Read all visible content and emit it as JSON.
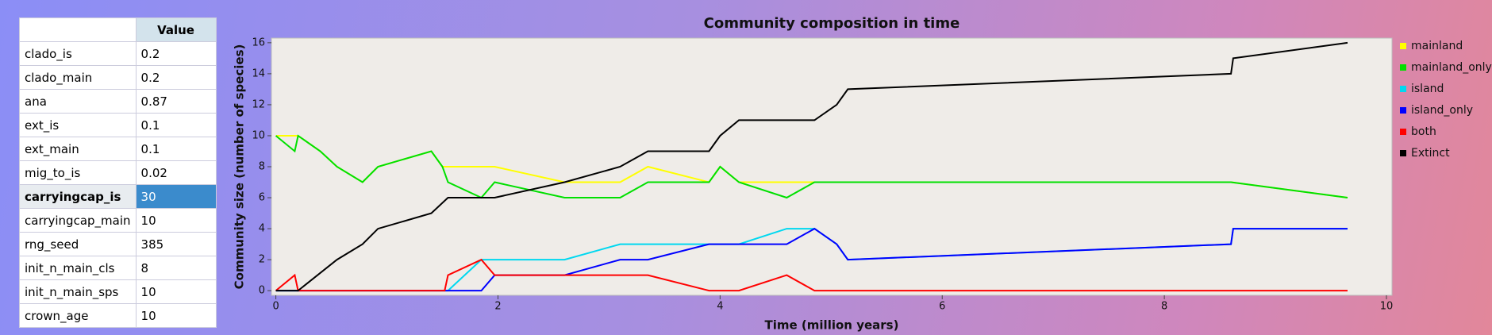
{
  "table": {
    "header": "Value",
    "rows": [
      [
        "clado_is",
        "0.2"
      ],
      [
        "clado_main",
        "0.2"
      ],
      [
        "ana",
        "0.87"
      ],
      [
        "ext_is",
        "0.1"
      ],
      [
        "ext_main",
        "0.1"
      ],
      [
        "mig_to_is",
        "0.02"
      ],
      [
        "carryingcap_is",
        "30"
      ],
      [
        "carryingcap_main",
        "10"
      ],
      [
        "rng_seed",
        "385"
      ],
      [
        "init_n_main_cls",
        "8"
      ],
      [
        "init_n_main_sps",
        "10"
      ],
      [
        "crown_age",
        "10"
      ]
    ],
    "selected_row": 6
  },
  "chart_data": {
    "type": "line",
    "title": "Community composition in time",
    "x_label": "Time (million years)",
    "y_label": "Community size (number of species)",
    "xlim": [
      -0.04,
      10.05
    ],
    "ylim": [
      -0.3,
      16.3
    ],
    "xticks": [
      0,
      2,
      4,
      6,
      8,
      10
    ],
    "yticks": [
      0,
      2,
      4,
      6,
      8,
      10,
      12,
      14,
      16
    ],
    "legend": "right",
    "series": [
      {
        "name": "mainland",
        "color": "#ffff00",
        "x": [
          0,
          0.2,
          0.4,
          0.55,
          0.78,
          0.92,
          1.4,
          1.5,
          1.55,
          1.97,
          2.6,
          3.1,
          3.35,
          3.9,
          4.0,
          4.17,
          4.85,
          8.6,
          9.65
        ],
        "values": [
          10,
          10,
          9,
          8,
          7,
          8,
          9,
          8,
          8,
          8,
          7,
          7,
          8,
          7,
          8,
          7,
          7,
          7,
          6
        ]
      },
      {
        "name": "mainland_only",
        "color": "#00e000",
        "x": [
          0,
          0.17,
          0.2,
          0.4,
          0.55,
          0.78,
          0.92,
          1.4,
          1.5,
          1.55,
          1.85,
          1.97,
          2.6,
          3.1,
          3.35,
          3.9,
          4.0,
          4.17,
          4.6,
          4.85,
          8.6,
          9.65
        ],
        "values": [
          10,
          9,
          10,
          9,
          8,
          7,
          8,
          9,
          8,
          7,
          6,
          7,
          6,
          6,
          7,
          7,
          8,
          7,
          6,
          7,
          7,
          6
        ]
      },
      {
        "name": "island",
        "color": "#00d8f0",
        "x": [
          0,
          1.55,
          1.85,
          1.97,
          2.6,
          3.1,
          3.35,
          3.9,
          4.17,
          4.6,
          4.85,
          5.05,
          5.15,
          8.6,
          8.62,
          9.65
        ],
        "values": [
          0,
          0,
          2,
          2,
          2,
          3,
          3,
          3,
          3,
          4,
          4,
          3,
          2,
          3,
          4,
          4
        ]
      },
      {
        "name": "island_only",
        "color": "#0000ff",
        "x": [
          0,
          1.85,
          1.97,
          2.6,
          3.1,
          3.35,
          3.9,
          4.17,
          4.6,
          4.85,
          5.05,
          5.15,
          8.6,
          8.62,
          9.65
        ],
        "values": [
          0,
          0,
          1,
          1,
          2,
          2,
          3,
          3,
          3,
          4,
          3,
          2,
          3,
          4,
          4
        ]
      },
      {
        "name": "both",
        "color": "#ff0000",
        "x": [
          0,
          0.17,
          0.2,
          1.52,
          1.55,
          1.85,
          1.97,
          3.35,
          3.9,
          4.17,
          4.6,
          4.85,
          9.65
        ],
        "values": [
          0,
          1,
          0,
          0,
          1,
          2,
          1,
          1,
          0,
          0,
          1,
          0,
          0
        ]
      },
      {
        "name": "Extinct",
        "color": "#000000",
        "x": [
          0,
          0.2,
          0.55,
          0.78,
          0.92,
          1.4,
          1.55,
          1.97,
          2.6,
          3.1,
          3.35,
          3.9,
          4.0,
          4.17,
          4.85,
          5.05,
          5.15,
          8.6,
          8.62,
          9.65
        ],
        "values": [
          0,
          0,
          2,
          3,
          4,
          5,
          6,
          6,
          7,
          8,
          9,
          9,
          10,
          11,
          11,
          12,
          13,
          14,
          15,
          16
        ]
      }
    ]
  }
}
